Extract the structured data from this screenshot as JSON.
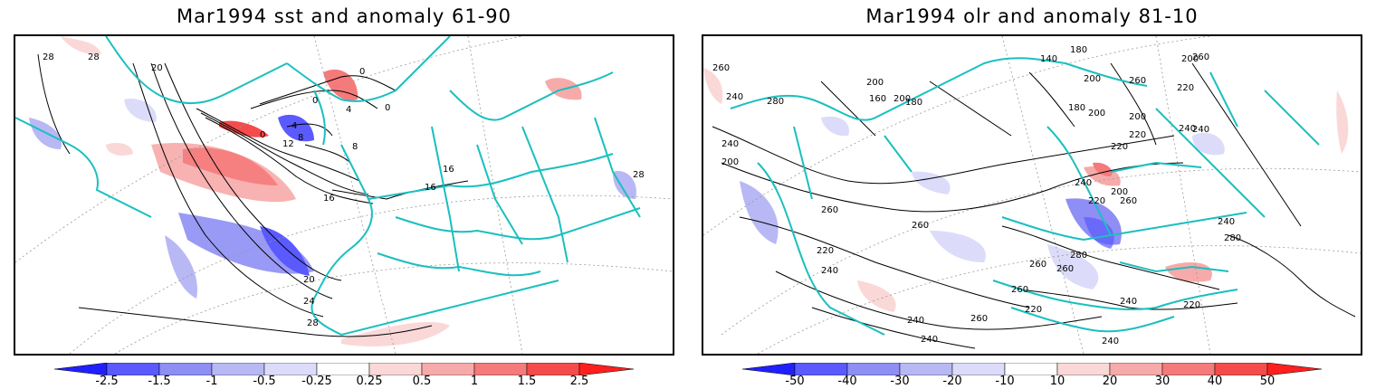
{
  "left_panel": {
    "title": "Mar1994 sst and anomaly 61-90",
    "contour_labels": [
      "28",
      "28",
      "20",
      "0",
      "4",
      "0",
      "4",
      "8",
      "12",
      "8",
      "16",
      "16",
      "16",
      "20",
      "24",
      "28",
      "28",
      "0",
      "0"
    ],
    "colorbar": {
      "ticks": [
        "-2.5",
        "-1.5",
        "-1",
        "-0.5",
        "-0.25",
        "0.25",
        "0.5",
        "1",
        "1.5",
        "2.5"
      ],
      "colors": [
        "#2020ff",
        "#5a5aff",
        "#8e8ef5",
        "#b8b8f5",
        "#dcdcfa",
        "#ffffff",
        "#fad8d8",
        "#f7aaaa",
        "#f57a7a",
        "#f54b4b",
        "#ff1f1f"
      ]
    }
  },
  "right_panel": {
    "title": "Mar1994 olr and anomaly 81-10",
    "contour_labels": [
      "260",
      "240",
      "280",
      "200",
      "180",
      "160",
      "140",
      "180",
      "200",
      "200",
      "260",
      "260",
      "220",
      "180",
      "200",
      "200",
      "200",
      "220",
      "240",
      "240",
      "200",
      "220",
      "240",
      "240",
      "260",
      "260",
      "240",
      "280",
      "260",
      "220",
      "200",
      "260",
      "260",
      "260",
      "280",
      "220",
      "240",
      "220",
      "240",
      "260",
      "220",
      "240",
      "240",
      "240"
    ],
    "colorbar": {
      "ticks": [
        "-50",
        "-40",
        "-30",
        "-20",
        "-10",
        "10",
        "20",
        "30",
        "40",
        "50"
      ],
      "colors": [
        "#2020ff",
        "#5a5aff",
        "#8e8ef5",
        "#b8b8f5",
        "#dcdcfa",
        "#ffffff",
        "#fad8d8",
        "#f7aaaa",
        "#f57a7a",
        "#f54b4b",
        "#ff1f1f"
      ]
    }
  },
  "style": {
    "coast_color": "#1bbfbf",
    "contour_color": "#000000",
    "grid_color": "#999999"
  }
}
